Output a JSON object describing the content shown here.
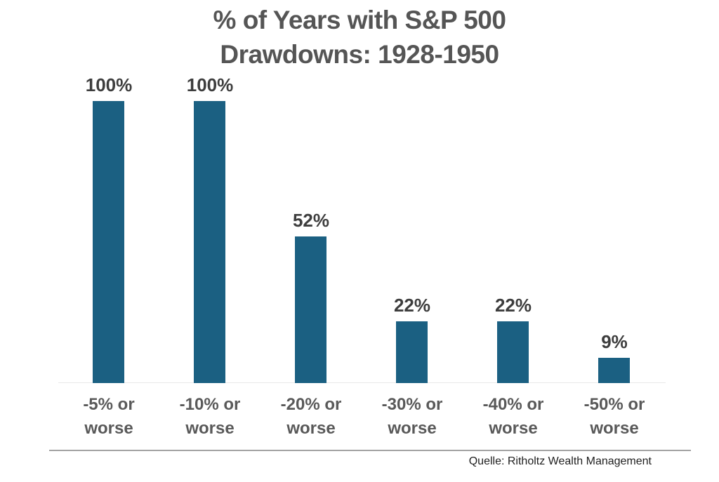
{
  "chart_data": {
    "type": "bar",
    "title": "% of Years with S&P 500 Drawdowns: 1928-1950",
    "title_lines": [
      "% of Years with S&P 500",
      "Drawdowns: 1928-1950"
    ],
    "categories": [
      "-5% or worse",
      "-10% or worse",
      "-20% or worse",
      "-30% or worse",
      "-40% or worse",
      "-50% or worse"
    ],
    "values": [
      100,
      100,
      52,
      22,
      22,
      9
    ],
    "value_labels": [
      "100%",
      "100%",
      "52%",
      "22%",
      "22%",
      "9%"
    ],
    "xlabel": "",
    "ylabel": "",
    "ylim": [
      0,
      100
    ],
    "grid": false,
    "legend": "none",
    "bar_color": "#1b6082"
  },
  "source_note": "Quelle: Ritholtz Wealth Management",
  "colors": {
    "background": "#ffffff",
    "bar": "#1b6082",
    "title_text": "#555555",
    "value_label_text": "#3d3d3d",
    "category_label_text": "#595959",
    "baseline": "#e8e8e8",
    "divider": "#a3a3a3",
    "source_text": "#1f1f1f"
  }
}
